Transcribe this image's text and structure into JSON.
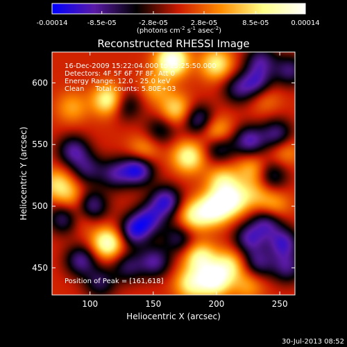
{
  "chart_data": {
    "type": "heatmap",
    "title": "Reconstructed RHESSI Image",
    "xlabel": "Heliocentric X (arcsec)",
    "ylabel": "Heliocentric Y (arcsec)",
    "xlim": [
      70,
      262
    ],
    "ylim": [
      428,
      625
    ],
    "x_ticks": [
      100,
      150,
      200,
      250
    ],
    "y_ticks": [
      450,
      500,
      550,
      600
    ],
    "x_tick_labels": [
      "100",
      "150",
      "200",
      "250"
    ],
    "y_tick_labels": [
      "450",
      "500",
      "550",
      "600"
    ],
    "grid": false,
    "colorbar": {
      "range": [
        -0.00014,
        0.00014
      ],
      "tick_values": [
        -0.00014,
        -8.5e-05,
        -2.8e-05,
        2.8e-05,
        8.5e-05,
        0.00014
      ],
      "tick_labels": [
        "-0.00014",
        "-8.5e-05",
        "-2.8e-05",
        "2.8e-05",
        "8.5e-05",
        "0.00014"
      ],
      "label_parts": {
        "part1": "(photons cm",
        "sup1": "-2",
        "part2": " s",
        "sup2": "-1",
        "part3": " asec",
        "sup3": "-2",
        "part4": ")"
      },
      "colors": [
        "#0000ff",
        "#5a1aa6",
        "#000000",
        "#cc1a00",
        "#ff8c00",
        "#ffff88",
        "#ffffff"
      ]
    },
    "annotations": [
      "16-Dec-2009 15:22:04.000 to 15:25:50.000",
      "Detectors: 4F 5F 6F 7F 8F, Att 0",
      "Energy Range: 12.0 - 25.0 keV",
      "Clean     Total counts: 5.80E+03"
    ],
    "peak_label": "Position of Peak = [161,618]",
    "peak_position": [
      161,
      618
    ],
    "footer_date": "30-Jul-2013 08:52",
    "blobs": [
      {
        "x": 165,
        "y": 618,
        "value": 0.00014
      },
      {
        "x": 200,
        "y": 615,
        "value": 9e-05
      },
      {
        "x": 115,
        "y": 586,
        "value": 0.00011
      },
      {
        "x": 86,
        "y": 580,
        "value": 5e-05
      },
      {
        "x": 168,
        "y": 578,
        "value": 8e-05
      },
      {
        "x": 200,
        "y": 560,
        "value": 8e-05
      },
      {
        "x": 178,
        "y": 540,
        "value": 0.0001
      },
      {
        "x": 142,
        "y": 544,
        "value": 6e-05
      },
      {
        "x": 228,
        "y": 530,
        "value": 6e-05
      },
      {
        "x": 254,
        "y": 545,
        "value": 5e-05
      },
      {
        "x": 205,
        "y": 520,
        "value": 8e-05
      },
      {
        "x": 198,
        "y": 498,
        "value": 0.00013
      },
      {
        "x": 212,
        "y": 505,
        "value": 0.00011
      },
      {
        "x": 182,
        "y": 492,
        "value": 9e-05
      },
      {
        "x": 245,
        "y": 500,
        "value": 6e-05
      },
      {
        "x": 230,
        "y": 510,
        "value": 5e-05
      },
      {
        "x": 74,
        "y": 518,
        "value": 7e-05
      },
      {
        "x": 85,
        "y": 508,
        "value": 5e-05
      },
      {
        "x": 114,
        "y": 470,
        "value": 0.00012
      },
      {
        "x": 92,
        "y": 492,
        "value": 5e-05
      },
      {
        "x": 187,
        "y": 458,
        "value": 0.0001
      },
      {
        "x": 198,
        "y": 440,
        "value": 0.00013
      },
      {
        "x": 210,
        "y": 452,
        "value": 8e-05
      },
      {
        "x": 180,
        "y": 437,
        "value": 9e-05
      },
      {
        "x": 225,
        "y": 436,
        "value": 5e-05
      },
      {
        "x": 238,
        "y": 588,
        "value": 4e-05
      },
      {
        "x": 152,
        "y": 596,
        "value": 5e-05
      },
      {
        "x": 258,
        "y": 610,
        "value": -8e-05
      },
      {
        "x": 235,
        "y": 618,
        "value": -8e-05
      },
      {
        "x": 217,
        "y": 595,
        "value": -7e-05
      },
      {
        "x": 232,
        "y": 600,
        "value": -9e-05
      },
      {
        "x": 138,
        "y": 530,
        "value": -0.00013
      },
      {
        "x": 120,
        "y": 526,
        "value": -8e-05
      },
      {
        "x": 186,
        "y": 570,
        "value": -9e-05
      },
      {
        "x": 202,
        "y": 548,
        "value": -8e-05
      },
      {
        "x": 226,
        "y": 553,
        "value": -0.0001
      },
      {
        "x": 248,
        "y": 558,
        "value": -9e-05
      },
      {
        "x": 87,
        "y": 545,
        "value": -9e-05
      },
      {
        "x": 98,
        "y": 530,
        "value": -7e-05
      },
      {
        "x": 128,
        "y": 582,
        "value": -7e-05
      },
      {
        "x": 160,
        "y": 504,
        "value": -0.00011
      },
      {
        "x": 147,
        "y": 490,
        "value": -9e-05
      },
      {
        "x": 101,
        "y": 500,
        "value": -0.0001
      },
      {
        "x": 80,
        "y": 490,
        "value": -9e-05
      },
      {
        "x": 135,
        "y": 480,
        "value": -0.00011
      },
      {
        "x": 151,
        "y": 455,
        "value": -9e-05
      },
      {
        "x": 130,
        "y": 451,
        "value": -7e-05
      },
      {
        "x": 170,
        "y": 474,
        "value": -7e-05
      },
      {
        "x": 240,
        "y": 487,
        "value": -9e-05
      },
      {
        "x": 226,
        "y": 474,
        "value": -9e-05
      },
      {
        "x": 253,
        "y": 470,
        "value": -0.0001
      },
      {
        "x": 233,
        "y": 454,
        "value": -8e-05
      },
      {
        "x": 256,
        "y": 450,
        "value": -8e-05
      },
      {
        "x": 93,
        "y": 456,
        "value": -9e-05
      },
      {
        "x": 108,
        "y": 438,
        "value": -7e-05
      },
      {
        "x": 244,
        "y": 525,
        "value": -7e-05
      },
      {
        "x": 156,
        "y": 562,
        "value": -6e-05
      }
    ]
  }
}
